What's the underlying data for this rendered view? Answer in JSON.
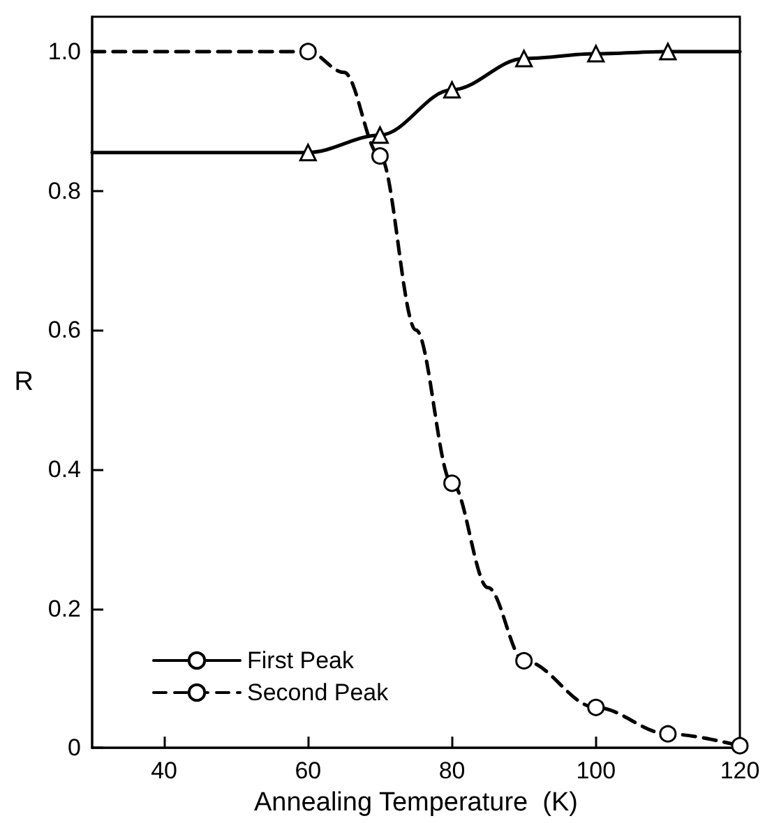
{
  "chart_data": {
    "type": "line",
    "xlabel": "Annealing Temperature  (K)",
    "ylabel": "R",
    "xlim": [
      30,
      120
    ],
    "xticks": [
      40,
      60,
      80,
      100,
      120
    ],
    "ylim": [
      0,
      1.05
    ],
    "yticks": [
      0,
      0.2,
      0.4,
      0.6,
      0.8,
      {
        "value": 1,
        "label": "1.0"
      }
    ],
    "grid": false,
    "legend": "bottom left",
    "series": [
      {
        "name": "First Peak",
        "color": "#000000",
        "line_style": "solid",
        "marker": "none",
        "x": [
          30,
          60,
          70,
          80,
          90,
          100,
          110,
          120
        ],
        "values": [
          0.855,
          0.855,
          0.88,
          0.945,
          0.99,
          0.997,
          1.0,
          1.0
        ]
      },
      {
        "type": "scatter",
        "color": "#000000",
        "marker": "triangle",
        "x": [
          60,
          70,
          80,
          90,
          100,
          110
        ],
        "values": [
          0.855,
          0.88,
          0.945,
          0.99,
          0.997,
          1.0
        ]
      },
      {
        "name": "Second Peak",
        "color": "#000000",
        "line_style": "dashed",
        "marker": "none",
        "x": [
          30,
          60,
          65,
          70,
          75,
          80,
          85,
          90,
          100,
          110,
          120
        ],
        "values": [
          1.0,
          1.0,
          0.97,
          0.85,
          0.6,
          0.38,
          0.23,
          0.125,
          0.058,
          0.02,
          0.003
        ]
      },
      {
        "type": "scatter",
        "color": "#000000",
        "marker": "circle",
        "x": [
          60,
          70,
          80,
          90,
          100,
          110,
          120
        ],
        "values": [
          1.0,
          0.85,
          0.38,
          0.125,
          0.058,
          0.02,
          0.003
        ]
      }
    ]
  }
}
